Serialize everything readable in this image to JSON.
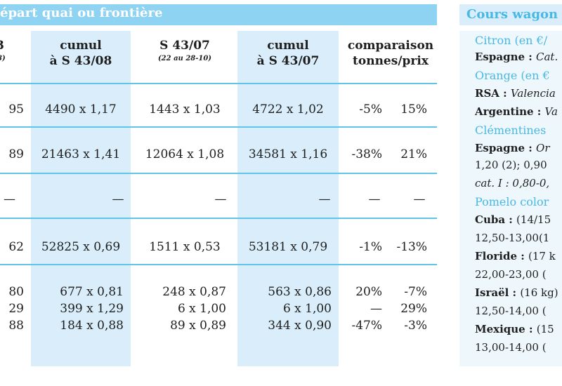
{
  "table": {
    "section_title": "épart quai ou frontière",
    "columns": {
      "c0_head": "3",
      "c0_sub": "/8)",
      "c1_head1": "cumul",
      "c1_head2": "à S 43/08",
      "c2_head1": "S 43/07",
      "c2_sub": "(22 au 28-10)",
      "c3_head1": "cumul",
      "c3_head2": "à S 43/07",
      "c4_head1": "comparaison",
      "c4_head2": "tonnes/prix"
    },
    "rows": [
      {
        "c0": "95",
        "c1": "4490 x 1,17",
        "c2": "1443 x 1,03",
        "c3": "4722 x 1,02",
        "t": "-5%",
        "p": "15%"
      },
      {
        "c0": "89",
        "c1": "21463 x 1,41",
        "c2": "12064 x 1,08",
        "c3": "34581 x 1,16",
        "t": "-38%",
        "p": "21%"
      },
      {
        "c0": "—",
        "c1": "—",
        "c2": "—",
        "c3": "—",
        "t": "—",
        "p": "—"
      },
      {
        "c0": "62",
        "c1": "52825 x 0,69",
        "c2": "1511 x 0,53",
        "c3": "53181 x 0,79",
        "t": "-1%",
        "p": "-13%"
      },
      {
        "c0": "80",
        "c1": "677 x 0,81",
        "c2": "248 x 0,87",
        "c3": "563 x 0,86",
        "t": "20%",
        "p": "-7%"
      },
      {
        "c0": "29",
        "c1": "399 x 1,29",
        "c2": "6 x 1,00",
        "c3": "6 x 1,00",
        "t": "—",
        "p": "29%"
      },
      {
        "c0": "88",
        "c1": "184 x 0,88",
        "c2": "89 x 0,89",
        "c3": "344 x 0,90",
        "t": "-47%",
        "p": "-3%"
      }
    ]
  },
  "panel": {
    "title": "Cours wagon",
    "lines": [
      {
        "b": "",
        "i": "",
        "n": "",
        "c": "Citron (en €/"
      },
      {
        "b": "Espagne : ",
        "i": "Cat.",
        "n": "",
        "c": ""
      },
      {
        "b": "",
        "i": "",
        "n": "",
        "c": "Orange (en €"
      },
      {
        "b": "RSA : ",
        "i": "Valencia",
        "n": "",
        "c": ""
      },
      {
        "b": "Argentine : ",
        "i": "Va",
        "n": "",
        "c": ""
      },
      {
        "b": "",
        "i": "",
        "n": "",
        "c": "Clémentines"
      },
      {
        "b": "Espagne : ",
        "i": "Or",
        "n": "",
        "c": ""
      },
      {
        "b": "",
        "i": "",
        "n": "1,20 (2); 0,90",
        "c": ""
      },
      {
        "b": "",
        "i": "cat. I : 0,80-0,",
        "n": "",
        "c": ""
      },
      {
        "b": "",
        "i": "",
        "n": "",
        "c": "Pomelo color"
      },
      {
        "b": "Cuba : ",
        "i": "",
        "n": "(14/15",
        "c": ""
      },
      {
        "b": "",
        "i": "",
        "n": "12,50-13,00(1",
        "c": ""
      },
      {
        "b": "Floride : ",
        "i": "",
        "n": "(17 k",
        "c": ""
      },
      {
        "b": "",
        "i": "",
        "n": "22,00-23,00 (",
        "c": ""
      },
      {
        "b": "Israël : ",
        "i": "",
        "n": "(16 kg)",
        "c": ""
      },
      {
        "b": "",
        "i": "",
        "n": "12,50-14,00 (",
        "c": ""
      },
      {
        "b": "Mexique : ",
        "i": "",
        "n": "(15",
        "c": ""
      },
      {
        "b": "",
        "i": "",
        "n": "13,00-14,00 (",
        "c": ""
      }
    ]
  },
  "colors": {
    "header_band": "#8fd3f3",
    "column_band": "#d9eefa",
    "rule": "#5ec4ec",
    "accent": "#47b9e4"
  }
}
